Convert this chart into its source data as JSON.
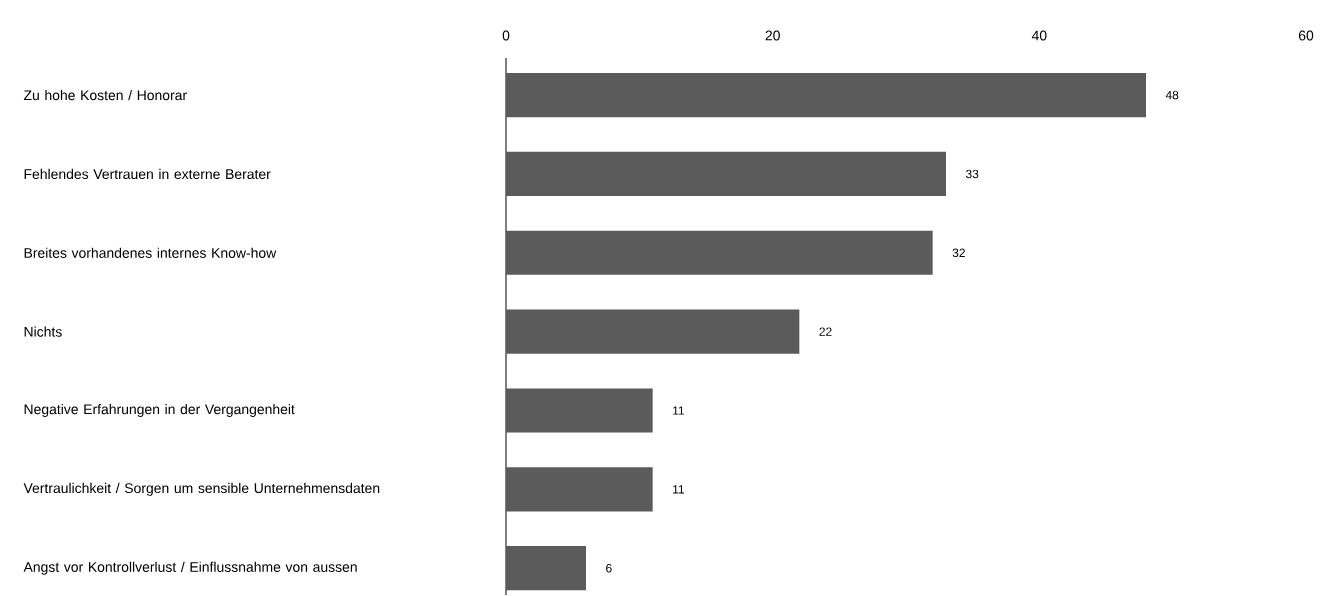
{
  "chart_data": {
    "type": "bar",
    "orientation": "horizontal",
    "categories": [
      "Zu hohe Kosten / Honorar",
      "Fehlendes Vertrauen in externe Berater",
      "Breites vorhandenes internes Know-how",
      "Nichts",
      "Negative Erfahrungen in der Vergangenheit",
      "Vertraulichkeit / Sorgen um sensible Unternehmensdaten",
      "Angst vor Kontrollverlust / Einflussnahme von aussen"
    ],
    "values": [
      48,
      33,
      32,
      22,
      11,
      11,
      6
    ],
    "color": "#5a5b5a",
    "xlim": [
      0,
      60
    ],
    "xticks": [
      0,
      20,
      40,
      60
    ],
    "data_labels": true
  }
}
